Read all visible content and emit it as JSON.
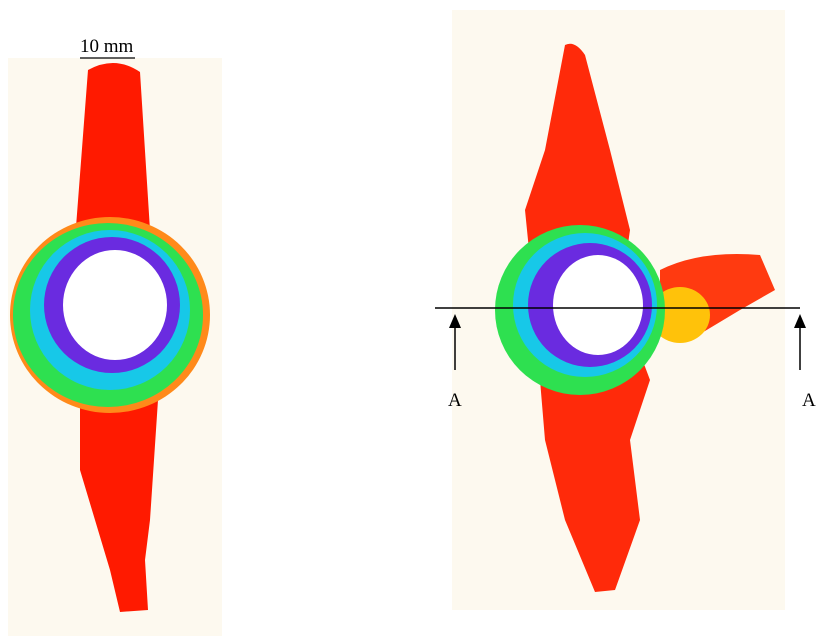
{
  "scale_bar": {
    "label": "10 mm"
  },
  "section_markers": [
    "A",
    "A"
  ]
}
